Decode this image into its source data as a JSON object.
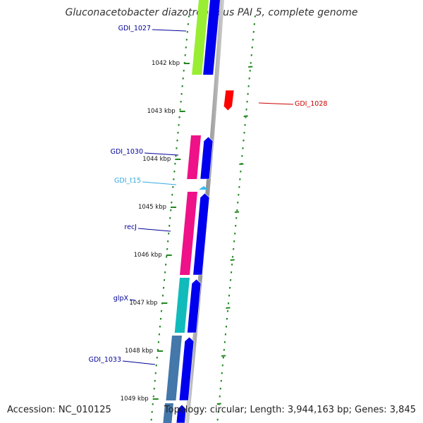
{
  "title": "Gluconacetobacter diazotrophicus PAI 5, complete genome",
  "accession": "Accession: NC_010125",
  "summary": "Topology: circular; Length: 3,944,163 bp; Genes: 3,845",
  "ticks": [
    {
      "label": "1042 kbp",
      "kbp": 1042
    },
    {
      "label": "1043 kbp",
      "kbp": 1043
    },
    {
      "label": "1044 kbp",
      "kbp": 1044
    },
    {
      "label": "1045 kbp",
      "kbp": 1045
    },
    {
      "label": "1046 kbp",
      "kbp": 1046
    },
    {
      "label": "1047 kbp",
      "kbp": 1047
    },
    {
      "label": "1048 kbp",
      "kbp": 1048
    },
    {
      "label": "1049 kbp",
      "kbp": 1049
    }
  ],
  "genes": [
    {
      "name": "GDI_1027",
      "color": "#000099",
      "feature_color": "#99ee33"
    },
    {
      "name": "GDI_1028",
      "color": "#cc0000",
      "feature_color": "#ff0000"
    },
    {
      "name": "GDI_1030",
      "color": "#000099",
      "feature_color": "#ee1188"
    },
    {
      "name": "GDI_t15",
      "color": "#33aadd",
      "feature_color": "#33bbee"
    },
    {
      "name": "recJ",
      "color": "#000099",
      "feature_color": "#ee1188"
    },
    {
      "name": "glpX",
      "color": "#000099",
      "feature_color": "#11bbbb"
    },
    {
      "name": "GDI_1033",
      "color": "#000099",
      "feature_color": "#4477aa"
    }
  ],
  "colors": {
    "backbone": "#888888",
    "tick": "#228822",
    "cds_arrow": "#0000ee"
  }
}
